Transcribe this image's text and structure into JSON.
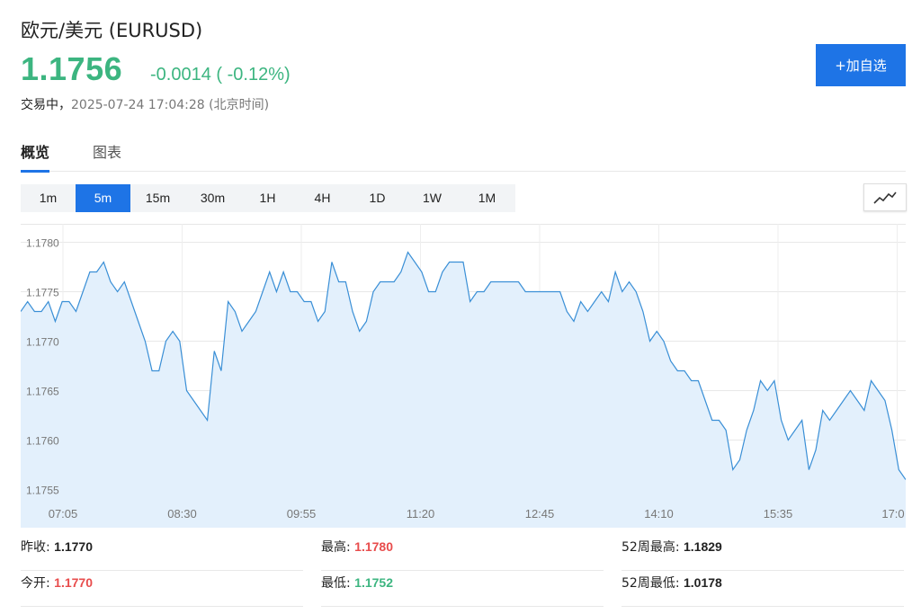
{
  "header": {
    "title": "欧元/美元  (EURUSD)",
    "price": "1.1756",
    "change": "-0.0014 ( -0.12%)",
    "status_label": "交易中，",
    "timestamp": "2025-07-24 17:04:28",
    "timezone": "(北京时间)",
    "add_button": "+加自选",
    "accent_color": "#1e74e6",
    "down_color": "#3cb580"
  },
  "tabs": [
    {
      "label": "概览",
      "active": true
    },
    {
      "label": "图表",
      "active": false
    }
  ],
  "periods": [
    {
      "label": "1m",
      "active": false
    },
    {
      "label": "5m",
      "active": true
    },
    {
      "label": "15m",
      "active": false
    },
    {
      "label": "30m",
      "active": false
    },
    {
      "label": "1H",
      "active": false
    },
    {
      "label": "4H",
      "active": false
    },
    {
      "label": "1D",
      "active": false
    },
    {
      "label": "1W",
      "active": false
    },
    {
      "label": "1M",
      "active": false
    }
  ],
  "chart_type_icon": "line-chart-icon",
  "chart_data": {
    "type": "area",
    "title": "",
    "xlabel": "",
    "ylabel": "",
    "ylim": [
      1.17535,
      1.17815
    ],
    "y_ticks": [
      "1.1780",
      "1.1775",
      "1.1770",
      "1.1765",
      "1.1760",
      "1.1755"
    ],
    "y_tick_values": [
      1.178,
      1.1775,
      1.177,
      1.1765,
      1.176,
      1.1755
    ],
    "x_ticks": [
      "07:05",
      "08:30",
      "09:55",
      "11:20",
      "12:45",
      "14:10",
      "15:35",
      "17:0"
    ],
    "grid": true,
    "line_color": "#3a8fd6",
    "fill_color": "#e3f0fc",
    "values": [
      1.1773,
      1.1774,
      1.1773,
      1.1773,
      1.1774,
      1.1772,
      1.1774,
      1.1774,
      1.1773,
      1.1775,
      1.1777,
      1.1777,
      1.1778,
      1.1776,
      1.1775,
      1.1776,
      1.1774,
      1.1772,
      1.177,
      1.1767,
      1.1767,
      1.177,
      1.1771,
      1.177,
      1.1765,
      1.1764,
      1.1763,
      1.1762,
      1.1769,
      1.1767,
      1.1774,
      1.1773,
      1.1771,
      1.1772,
      1.1773,
      1.1775,
      1.1777,
      1.1775,
      1.1777,
      1.1775,
      1.1775,
      1.1774,
      1.1774,
      1.1772,
      1.1773,
      1.1778,
      1.1776,
      1.1776,
      1.1773,
      1.1771,
      1.1772,
      1.1775,
      1.1776,
      1.1776,
      1.1776,
      1.1777,
      1.1779,
      1.1778,
      1.1777,
      1.1775,
      1.1775,
      1.1777,
      1.1778,
      1.1778,
      1.1778,
      1.1774,
      1.1775,
      1.1775,
      1.1776,
      1.1776,
      1.1776,
      1.1776,
      1.1776,
      1.1775,
      1.1775,
      1.1775,
      1.1775,
      1.1775,
      1.1775,
      1.1773,
      1.1772,
      1.1774,
      1.1773,
      1.1774,
      1.1775,
      1.1774,
      1.1777,
      1.1775,
      1.1776,
      1.1775,
      1.1773,
      1.177,
      1.1771,
      1.177,
      1.1768,
      1.1767,
      1.1767,
      1.1766,
      1.1766,
      1.1764,
      1.1762,
      1.1762,
      1.1761,
      1.1757,
      1.1758,
      1.1761,
      1.1763,
      1.1766,
      1.1765,
      1.1766,
      1.1762,
      1.176,
      1.1761,
      1.1762,
      1.1757,
      1.1759,
      1.1763,
      1.1762,
      1.1763,
      1.1764,
      1.1765,
      1.1764,
      1.1763,
      1.1766,
      1.1765,
      1.1764,
      1.1761,
      1.1757,
      1.1756
    ]
  },
  "stats": {
    "prev_close_label": "昨收:",
    "prev_close": "1.1770",
    "open_label": "今开:",
    "open": "1.1770",
    "high_label": "最高:",
    "high": "1.1780",
    "low_label": "最低:",
    "low": "1.1752",
    "week52_high_label": "52周最高:",
    "week52_high": "1.1829",
    "week52_low_label": "52周最低:",
    "week52_low": "1.0178"
  }
}
